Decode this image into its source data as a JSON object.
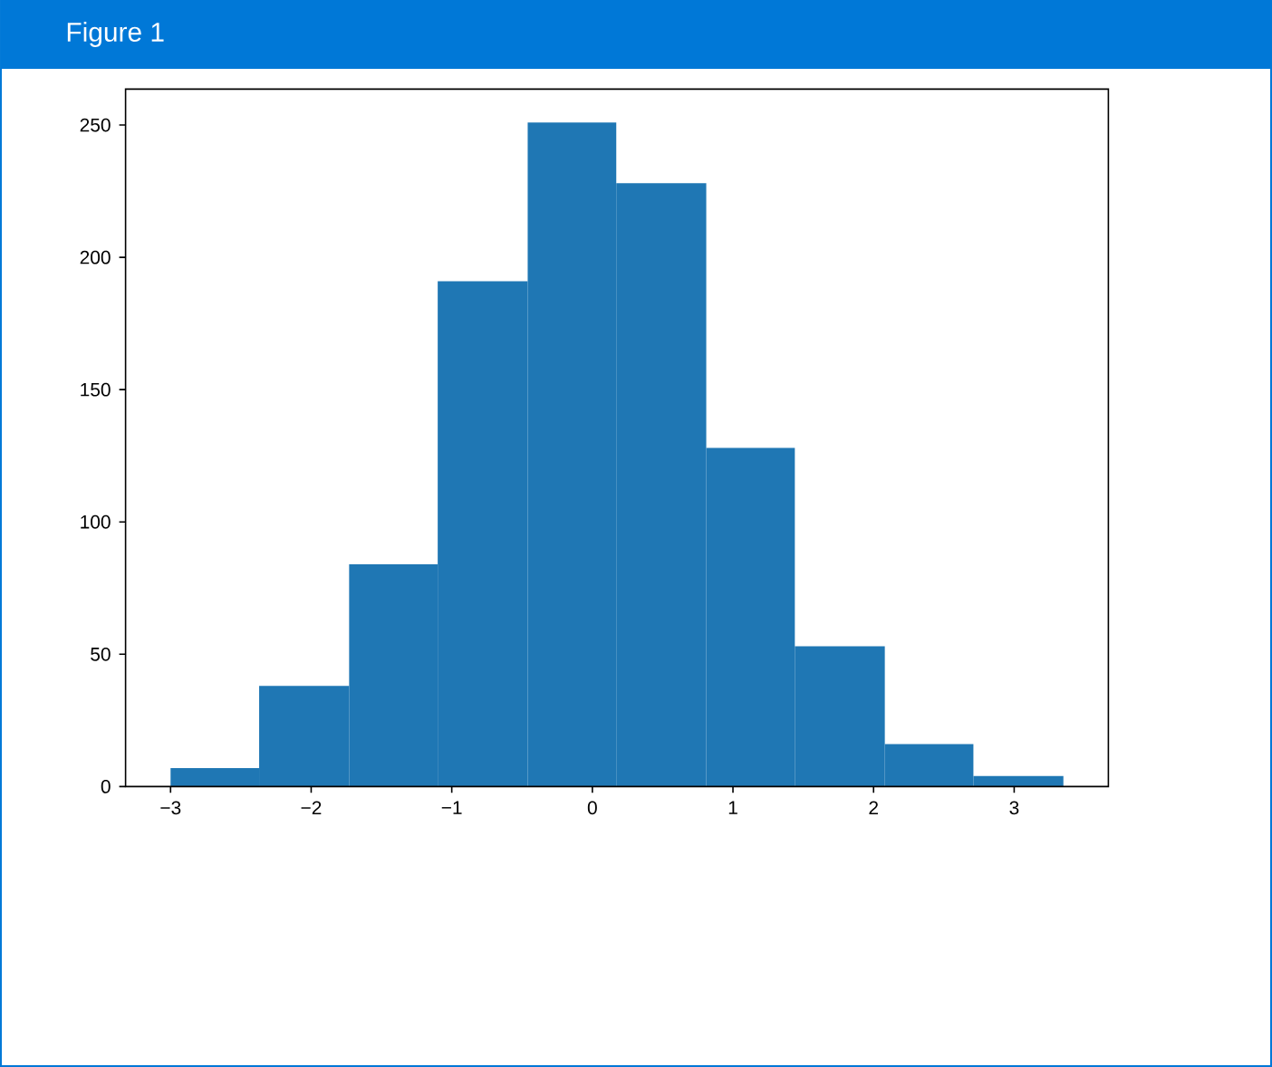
{
  "chart_data": {
    "type": "histogram",
    "title": "Figure 1",
    "bins": [
      -3.0,
      -2.37,
      -1.73,
      -1.1,
      -0.46,
      0.17,
      0.81,
      1.44,
      2.08,
      2.71,
      3.35
    ],
    "values": [
      7,
      38,
      84,
      191,
      251,
      228,
      128,
      53,
      16,
      4
    ],
    "color": "#1f77b4",
    "xlim": [
      -3.32,
      3.67
    ],
    "ylim": [
      0,
      263.6
    ],
    "xticks": [
      {
        "value": -3,
        "label": "−3"
      },
      {
        "value": -2,
        "label": "−2"
      },
      {
        "value": -1,
        "label": "−1"
      },
      0,
      1,
      2,
      3
    ],
    "yticks": [
      0,
      50,
      100,
      150,
      200,
      250
    ]
  }
}
